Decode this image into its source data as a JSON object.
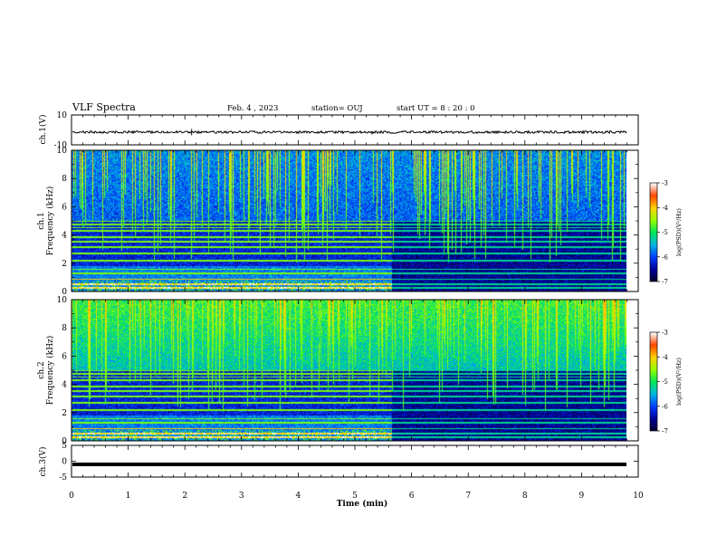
{
  "header": {
    "title": "VLF Spectra",
    "date": "Feb. 4 , 2023",
    "station": "station= OUJ",
    "start_ut": "start UT =  8 : 20 : 0"
  },
  "chart_data": [
    {
      "type": "line",
      "panel": "ch1-waveform",
      "ylabel": "ch.1(V)",
      "ylim": [
        -10,
        10
      ],
      "ytick_labels": [
        "10",
        "-10"
      ],
      "xlim": [
        0,
        10
      ],
      "baseline": -1.5,
      "spikes": [
        {
          "x": 0.85,
          "y": -2.4
        },
        {
          "x": 2.12,
          "y": 0.6
        },
        {
          "x": 2.12,
          "y": -3.6
        },
        {
          "x": 5.3,
          "y": -3.0
        }
      ]
    },
    {
      "type": "heatmap",
      "panel": "ch1-spectrogram",
      "ylabel": "ch.1 Frequency (kHz)",
      "ylim": [
        0,
        10
      ],
      "ytick_labels": [
        "0",
        "2",
        "4",
        "6",
        "8",
        "10"
      ],
      "xlim": [
        0,
        9.8
      ],
      "data_change_time_min": 5.65,
      "colorbar": {
        "label": "log(PSD)(V²/Hz)",
        "range": [
          -7,
          -3
        ],
        "tick_labels": [
          "-3",
          "-4",
          "-5",
          "-6",
          "-7"
        ]
      }
    },
    {
      "type": "heatmap",
      "panel": "ch2-spectrogram",
      "ylabel": "ch.2 Frequency (kHz)",
      "ylim": [
        0,
        10
      ],
      "ytick_labels": [
        "0",
        "2",
        "4",
        "6",
        "8",
        "10"
      ],
      "xlim": [
        0,
        9.8
      ],
      "data_change_time_min": 5.65,
      "colorbar": {
        "label": "log(PSD)(V²/Hz)",
        "range": [
          -7,
          -3
        ],
        "tick_labels": [
          "-3",
          "-4",
          "-5",
          "-6",
          "-7"
        ]
      }
    },
    {
      "type": "line",
      "panel": "ch3-waveform",
      "ylabel": "ch.3(V)",
      "ylim": [
        -5,
        5
      ],
      "ytick_labels": [
        "5",
        "0",
        "-5"
      ],
      "xlim": [
        0,
        9.8
      ],
      "baseline": -1.0
    }
  ],
  "xaxis": {
    "label": "Time  (min)",
    "range": [
      0,
      10
    ],
    "tick_labels": [
      "0",
      "1",
      "2",
      "3",
      "4",
      "5",
      "6",
      "7",
      "8",
      "9",
      "10"
    ]
  },
  "colors": {
    "axis": "#000000",
    "waveform": "#000000",
    "colormap": [
      "#000033",
      "#0000cc",
      "#0066ff",
      "#00cccc",
      "#00ee44",
      "#ccff00",
      "#ffcc00",
      "#ff4400",
      "#ffffff"
    ]
  }
}
